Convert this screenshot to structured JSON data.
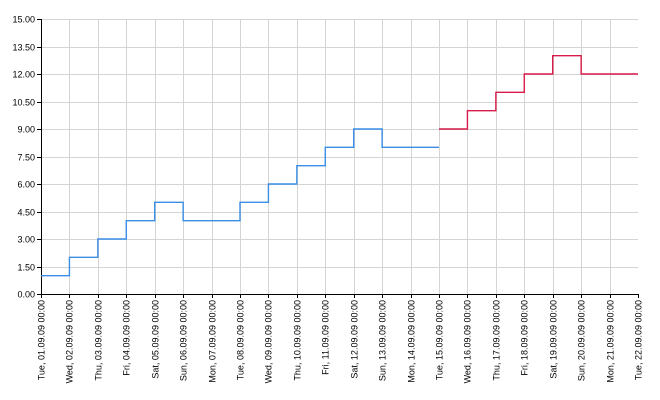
{
  "chart_data": {
    "type": "line",
    "step": true,
    "ylim": [
      0,
      15
    ],
    "yticks": [
      "0.00",
      "1.50",
      "3.00",
      "4.50",
      "6.00",
      "7.50",
      "9.00",
      "10.50",
      "12.00",
      "13.50",
      "15.00"
    ],
    "categories": [
      "Tue, 01.09.09 00:00",
      "Wed, 02.09.09 00:00",
      "Thu, 03.09.09 00:00",
      "Fri, 04.09.09 00:00",
      "Sat, 05.09.09 00:00",
      "Sun, 06.09.09 00:00",
      "Mon, 07.09.09 00:00",
      "Tue, 08.09.09 00:00",
      "Wed, 09.09.09 00:00",
      "Thu, 10.09.09 00:00",
      "Fri, 11.09.09 00:00",
      "Sat, 12.09.09 00:00",
      "Sun, 13.09.09 00:00",
      "Mon, 14.09.09 00:00",
      "Tue, 15.09.09 00:00",
      "Wed, 16.09.09 00:00",
      "Thu, 17.09.09 00:00",
      "Fri, 18.09.09 00:00",
      "Sat, 19.09.09 00:00",
      "Sun, 20.09.09 00:00",
      "Mon, 21.09.09 00:00",
      "Tue, 22.09.09 00:00"
    ],
    "series": [
      {
        "color": "#3a8ee6",
        "x": [
          "Tue, 01.09.09 00:00",
          "Wed, 02.09.09 00:00",
          "Thu, 03.09.09 00:00",
          "Fri, 04.09.09 00:00",
          "Sat, 05.09.09 00:00",
          "Sun, 06.09.09 00:00",
          "Mon, 07.09.09 00:00",
          "Tue, 08.09.09 00:00",
          "Wed, 09.09.09 00:00",
          "Thu, 10.09.09 00:00",
          "Fri, 11.09.09 00:00",
          "Sat, 12.09.09 00:00",
          "Sun, 13.09.09 00:00",
          "Mon, 14.09.09 00:00",
          "Tue, 15.09.09 00:00"
        ],
        "values": [
          1,
          2,
          3,
          4,
          5,
          4,
          4,
          5,
          6,
          7,
          8,
          9,
          8,
          8,
          8
        ]
      },
      {
        "color": "#d81b4a",
        "x": [
          "Tue, 15.09.09 00:00",
          "Wed, 16.09.09 00:00",
          "Thu, 17.09.09 00:00",
          "Fri, 18.09.09 00:00",
          "Sat, 19.09.09 00:00",
          "Sun, 20.09.09 00:00",
          "Mon, 21.09.09 00:00",
          "Tue, 22.09.09 00:00"
        ],
        "values": [
          9,
          10,
          11,
          12,
          13,
          12,
          12,
          12
        ]
      }
    ],
    "grid": true,
    "title": "",
    "xlabel": "",
    "ylabel": ""
  }
}
